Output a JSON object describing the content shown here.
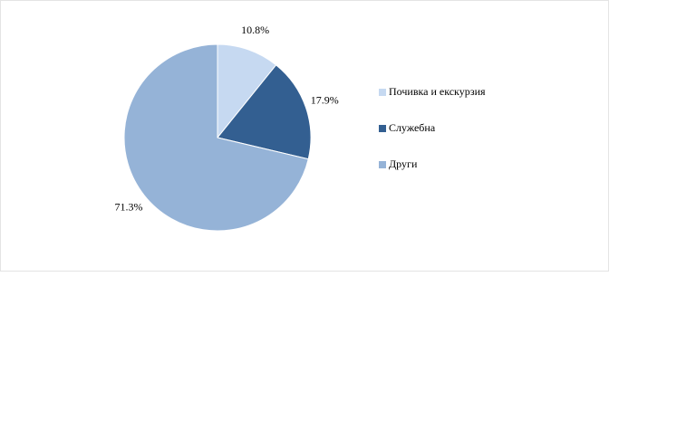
{
  "chart_data": {
    "type": "pie",
    "categories": [
      "Почивка и екскурзия",
      "Служебна",
      "Други"
    ],
    "values": [
      10.8,
      17.9,
      71.3
    ],
    "value_labels": [
      "10.8%",
      "17.9%",
      "71.3%"
    ],
    "colors": [
      "#c6d9f1",
      "#335f91",
      "#95b3d7"
    ],
    "legend": "right"
  }
}
